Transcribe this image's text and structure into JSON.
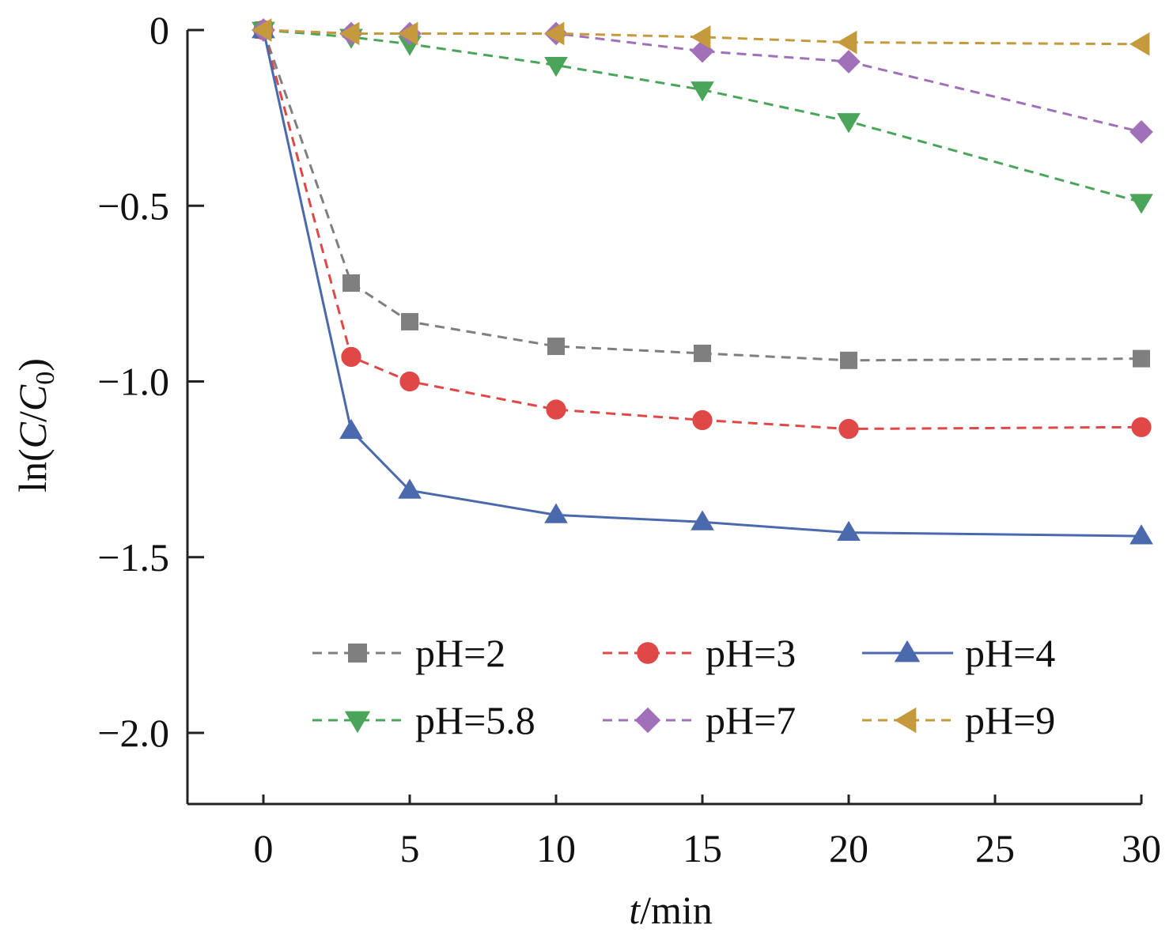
{
  "chart_data": {
    "type": "line",
    "xlabel": {
      "italic": "t",
      "rest": "/min"
    },
    "ylabel": {
      "prefix": "ln(",
      "var1": "C",
      "slash": "/",
      "var2": "C",
      "sub": "0",
      "suffix": ")"
    },
    "xlim": [
      -2.5,
      30
    ],
    "ylim": [
      -2.2,
      0
    ],
    "xticks": [
      0,
      5,
      10,
      15,
      20,
      25,
      30
    ],
    "yticks": [
      0,
      -0.5,
      -1.0,
      -1.5,
      -2.0
    ],
    "ytick_labels": [
      "0",
      "−0.5",
      "−1.0",
      "−1.5",
      "−2.0"
    ],
    "x": [
      0,
      3,
      5,
      10,
      15,
      20,
      30
    ],
    "grid": false,
    "legend_position": "bottom-center",
    "series": [
      {
        "name": "pH=2",
        "color": "#7f7f7f",
        "marker": "square",
        "dashed": true,
        "values": [
          0,
          -0.72,
          -0.83,
          -0.9,
          -0.92,
          -0.94,
          -0.935
        ]
      },
      {
        "name": "pH=3",
        "color": "#e04747",
        "marker": "circle",
        "dashed": true,
        "values": [
          0,
          -0.93,
          -1.0,
          -1.08,
          -1.11,
          -1.135,
          -1.13
        ]
      },
      {
        "name": "pH=4",
        "color": "#4a6aad",
        "marker": "triangle-up",
        "dashed": false,
        "values": [
          0,
          -1.14,
          -1.31,
          -1.38,
          -1.4,
          -1.43,
          -1.44
        ]
      },
      {
        "name": "pH=5.8",
        "color": "#4aa55a",
        "marker": "triangle-down",
        "dashed": true,
        "values": [
          0,
          -0.02,
          -0.04,
          -0.1,
          -0.17,
          -0.26,
          -0.49
        ]
      },
      {
        "name": "pH=7",
        "color": "#a070b8",
        "marker": "diamond",
        "dashed": true,
        "values": [
          0,
          -0.01,
          -0.01,
          -0.01,
          -0.06,
          -0.09,
          -0.29
        ]
      },
      {
        "name": "pH=9",
        "color": "#c49a3c",
        "marker": "triangle-left",
        "dashed": true,
        "values": [
          0,
          -0.01,
          -0.01,
          -0.01,
          -0.02,
          -0.035,
          -0.04
        ]
      }
    ]
  }
}
